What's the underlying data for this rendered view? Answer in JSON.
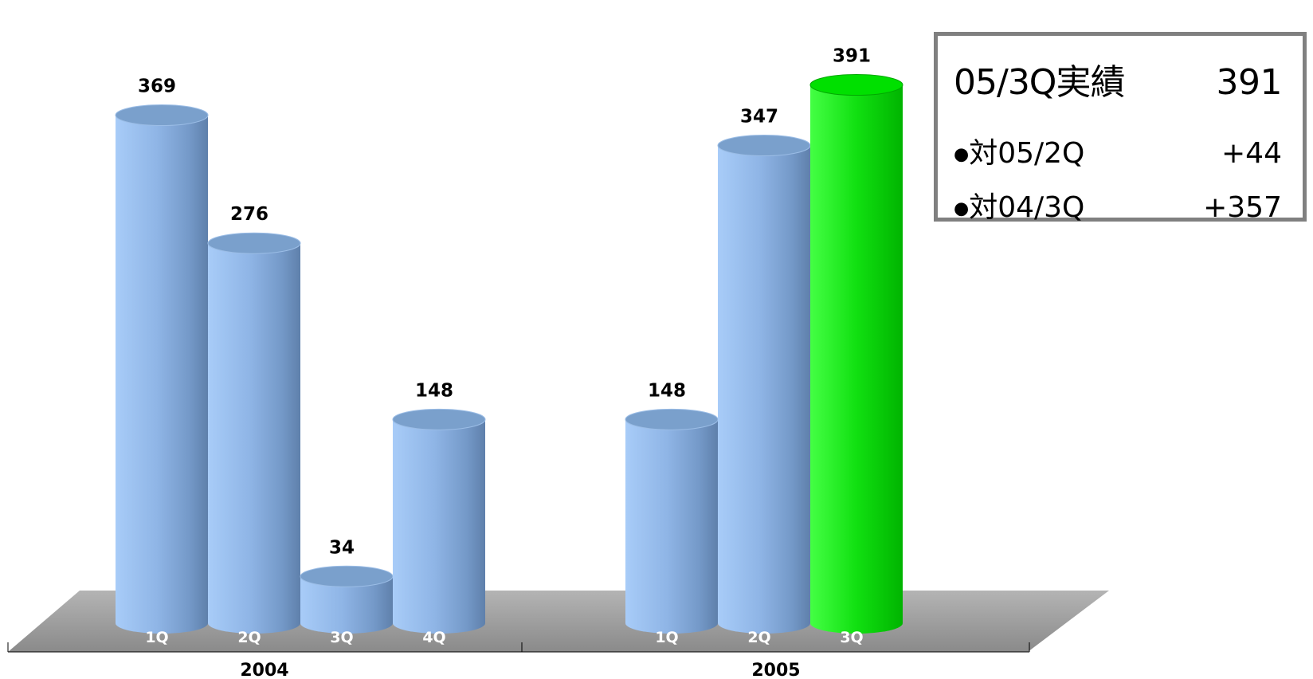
{
  "chart_data": {
    "type": "bar",
    "style": "3d-cylinder",
    "groups": [
      {
        "label": "2004",
        "bars": [
          {
            "category": "1Q",
            "value": 369,
            "highlight": false
          },
          {
            "category": "2Q",
            "value": 276,
            "highlight": false
          },
          {
            "category": "3Q",
            "value": 34,
            "highlight": false
          },
          {
            "category": "4Q",
            "value": 148,
            "highlight": false
          }
        ]
      },
      {
        "label": "2005",
        "bars": [
          {
            "category": "1Q",
            "value": 148,
            "highlight": false
          },
          {
            "category": "2Q",
            "value": 347,
            "highlight": false
          },
          {
            "category": "3Q",
            "value": 391,
            "highlight": true
          }
        ]
      }
    ],
    "ylim": [
      0,
      400
    ],
    "grid": false,
    "legend": "none",
    "colors": {
      "bar": "#8fb3e0",
      "highlight": "#00dd00",
      "floor": "#999999"
    }
  },
  "summary": {
    "heading_label": "05/3Q実績",
    "heading_value": "391",
    "rows": [
      {
        "bullet": "●",
        "label": "対05/2Q",
        "value": "+44"
      },
      {
        "bullet": "●",
        "label": "対04/3Q",
        "value": "+357"
      }
    ]
  }
}
